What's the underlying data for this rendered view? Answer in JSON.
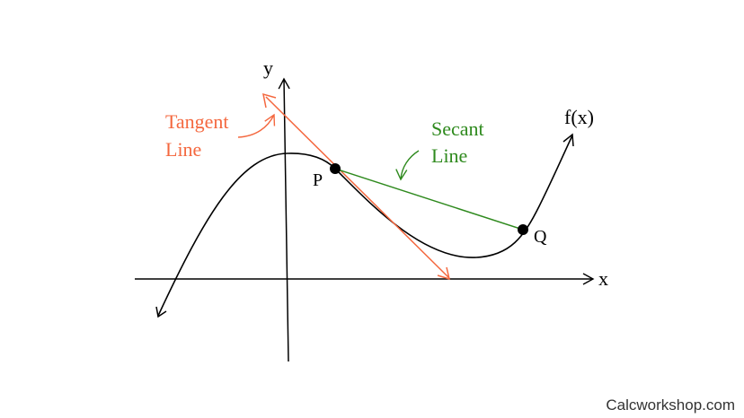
{
  "axes": {
    "x_label": "x",
    "y_label": "y"
  },
  "curve": {
    "label": "f(x)"
  },
  "points": {
    "p_label": "P",
    "q_label": "Q"
  },
  "tangent": {
    "label_line1": "Tangent",
    "label_line2": "Line",
    "color": "#f4683f"
  },
  "secant": {
    "label_line1": "Secant",
    "label_line2": "Line",
    "color": "#2f8a1e"
  },
  "watermark": "Calcworkshop.com"
}
